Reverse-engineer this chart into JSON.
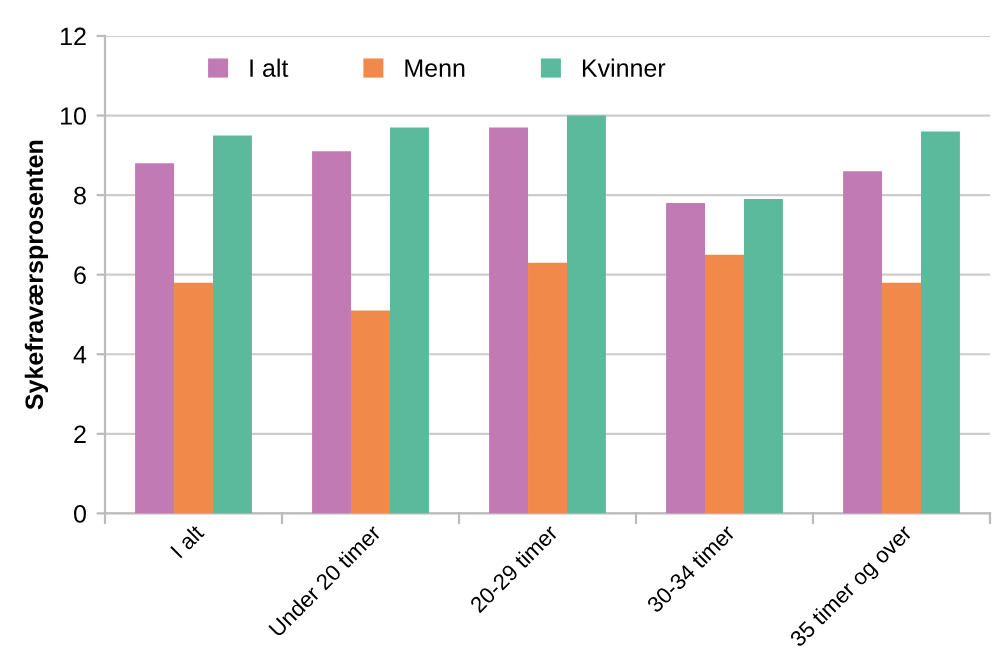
{
  "chart_data": {
    "type": "bar",
    "ylabel": "Sykefraværsprosenten",
    "categories": [
      "I alt",
      "Under 20 timer",
      "20-29 timer",
      "30-34 timer",
      "35 timer og over"
    ],
    "series": [
      {
        "name": "I alt",
        "color": "#c17ab4",
        "values": [
          8.8,
          9.1,
          9.7,
          7.8,
          8.6
        ]
      },
      {
        "name": "Menn",
        "color": "#f0894a",
        "values": [
          5.8,
          5.1,
          6.3,
          6.5,
          5.8
        ]
      },
      {
        "name": "Kvinner",
        "color": "#5bba9b",
        "values": [
          9.5,
          9.7,
          10.0,
          7.9,
          9.6
        ]
      }
    ],
    "ylim": [
      0,
      12
    ],
    "yticks": [
      0,
      2,
      4,
      6,
      8,
      10,
      12
    ],
    "grid": "y",
    "legend": "top"
  }
}
